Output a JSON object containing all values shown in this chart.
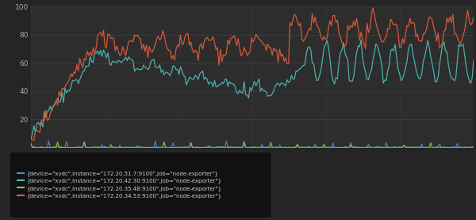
{
  "bg_color": "#252525",
  "plot_bg": "#2d2d2d",
  "grid_color": "#444444",
  "ylim": [
    0,
    100
  ],
  "yticks": [
    20,
    40,
    60,
    80,
    100
  ],
  "legend_labels": [
    "{device=\"xvdc\",instance=\"172.20.51.7:9100\",job=\"node-exporter\"}",
    "{device=\"xvdc\",instance=\"172.20.42.30:9100\",job=\"node-exporter\"}",
    "{device=\"xvdc\",instance=\"172.20.35.48:9100\",job=\"node-exporter\"}",
    "{device=\"xvdc\",instance=\"172.20.34.53:9100\",job=\"node-exporter\"}"
  ],
  "line_colors": [
    "#4a90d9",
    "#4db8b0",
    "#8bc34a",
    "#e05a3a"
  ],
  "n_points": 300,
  "figsize": [
    6.0,
    2.77
  ],
  "dpi": 100
}
